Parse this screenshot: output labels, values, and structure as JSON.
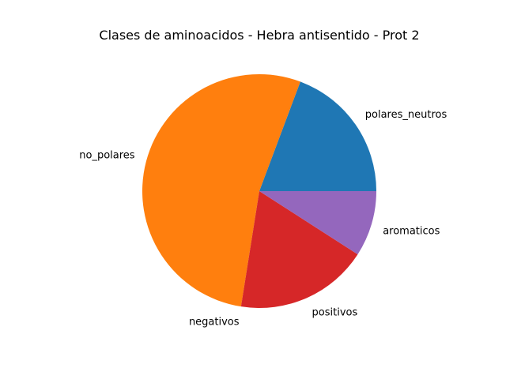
{
  "chart_data": {
    "type": "pie",
    "title": "Clases de aminoacidos - Hebra antisentido - Prot 2",
    "categories": [
      "polares_neutros",
      "no_polares",
      "negativos",
      "positivos",
      "aromaticos"
    ],
    "values": [
      19.3,
      53.2,
      0,
      18.4,
      9.1
    ],
    "colors": [
      "#1f77b4",
      "#ff7f0e",
      "#2ca02c",
      "#d62728",
      "#9467bd"
    ],
    "start_angle_deg": 0,
    "direction": "counterclockwise",
    "legend": "none"
  }
}
